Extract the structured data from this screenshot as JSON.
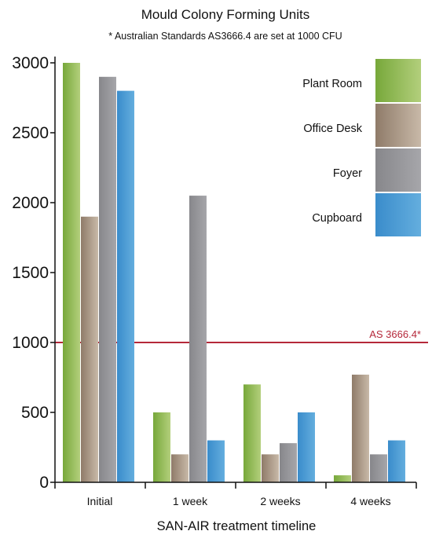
{
  "chart_data": {
    "type": "bar",
    "title": "Mould Colony Forming Units",
    "subtitle": "* Australian Standards AS3666.4 are set at 1000 CFU",
    "xlabel": "SAN-AIR treatment timeline",
    "ylabel": "",
    "ylim": [
      0,
      3000
    ],
    "yticks": [
      "0",
      "500",
      "1000",
      "1500",
      "2000",
      "2500",
      "3000"
    ],
    "categories": [
      "Initial",
      "1 week",
      "2 weeks",
      "4 weeks"
    ],
    "series": [
      {
        "name": "Plant Room",
        "values": [
          3000,
          500,
          700,
          50
        ],
        "color": "#8db84a"
      },
      {
        "name": "Office Desk",
        "values": [
          1900,
          200,
          200,
          770
        ],
        "color": "#b09c88"
      },
      {
        "name": "Foyer",
        "values": [
          2900,
          2050,
          280,
          200
        ],
        "color": "#9a9a9e"
      },
      {
        "name": "Cupboard",
        "values": [
          2800,
          300,
          500,
          300
        ],
        "color": "#4a9ad4"
      }
    ],
    "reference_line": {
      "label": "AS 3666.4*",
      "value": 1000,
      "color": "#b5283a"
    },
    "grid": false,
    "legend": "top-right"
  }
}
